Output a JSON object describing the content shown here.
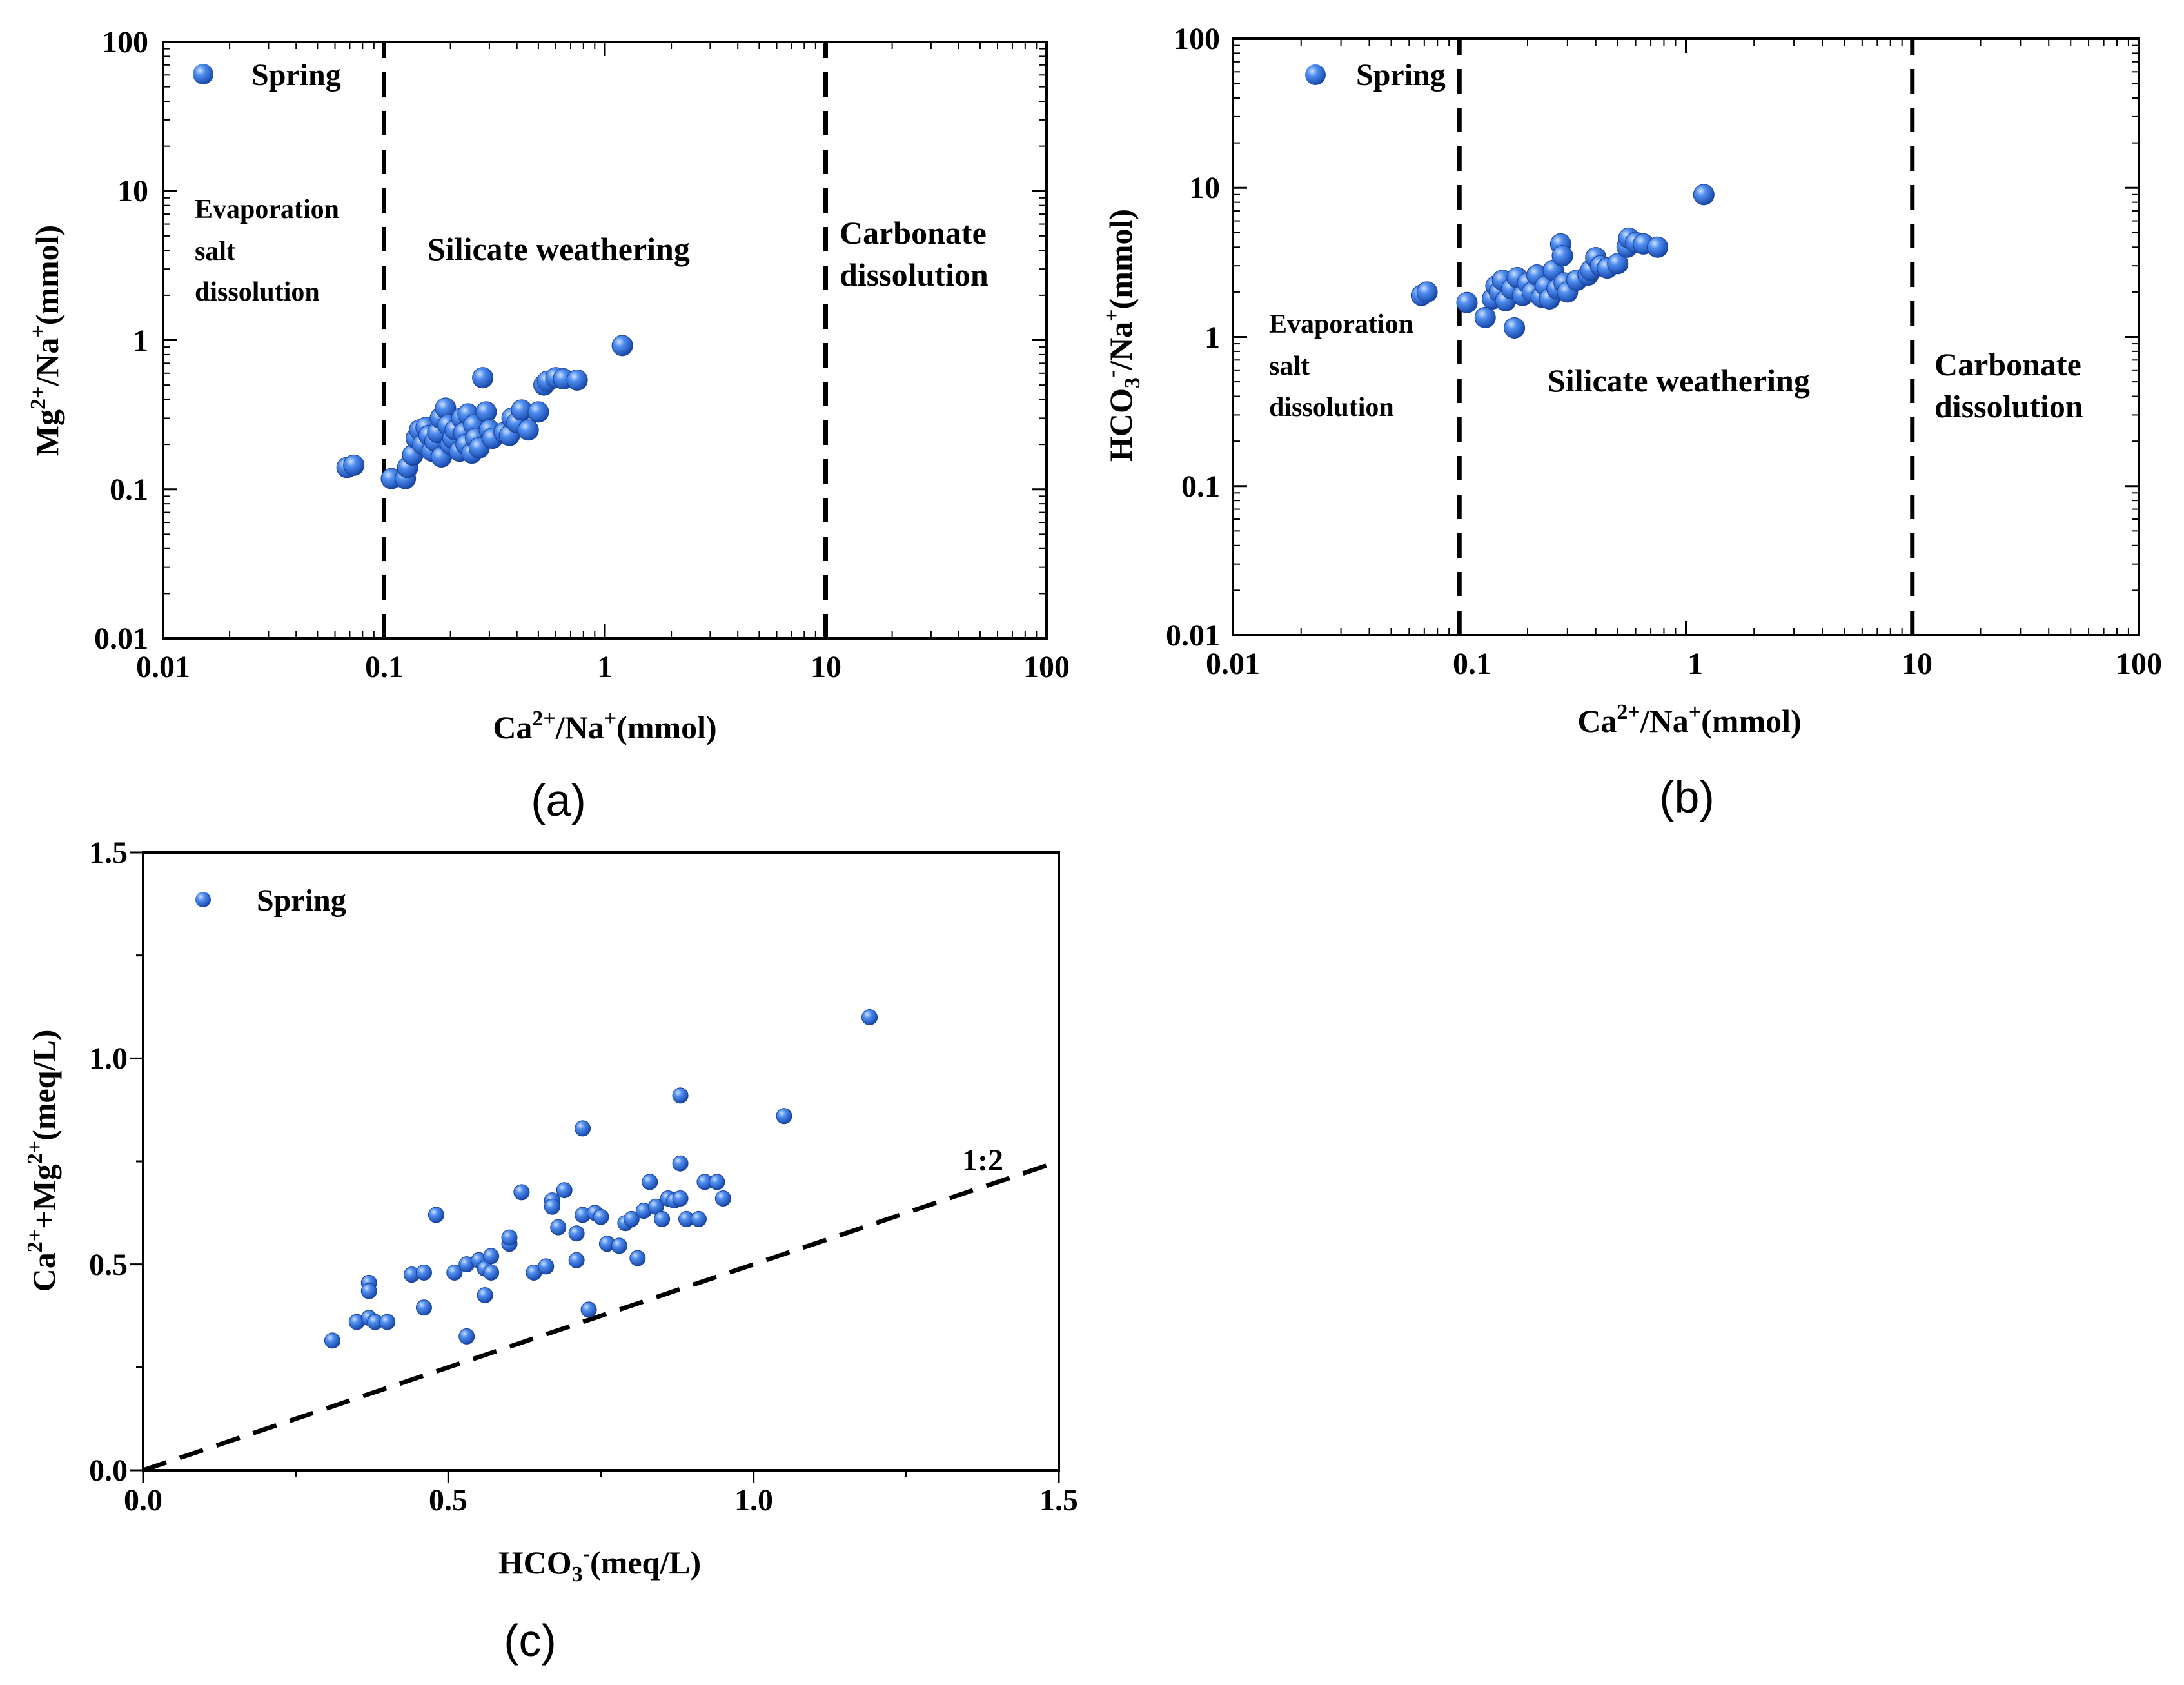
{
  "charts": {
    "a": {
      "panel_label": "(a)",
      "legend": "Spring",
      "xlabel": {
        "base": "Ca",
        "sup1": "2+",
        "mid": "/Na",
        "sup2": "+",
        "tail": "(mmol)"
      },
      "ylabel": {
        "base": "Mg",
        "sup1": "2+",
        "mid": "/Na",
        "sup2": "+",
        "tail": "(mmol)"
      },
      "xticks": [
        "0.01",
        "0.1",
        "1",
        "10",
        "100"
      ],
      "yticks": [
        "0.01",
        "0.1",
        "1",
        "10",
        "100"
      ],
      "regions": {
        "evap": [
          "Evaporation",
          "salt",
          "dissolution"
        ],
        "silicate": "Silicate weathering",
        "carbonate": [
          "Carbonate",
          "dissolution"
        ]
      }
    },
    "b": {
      "panel_label": "(b)",
      "legend": "Spring",
      "xlabel": {
        "base": "Ca",
        "sup1": "2+",
        "mid": "/Na",
        "sup2": "+",
        "tail": "(mmol)"
      },
      "ylabel": {
        "base": "HCO",
        "sub": "3",
        "sup1": "-",
        "mid": "/Na",
        "sup2": "+",
        "tail": "(mmol)"
      },
      "xticks": [
        "0.01",
        "0.1",
        "1",
        "10",
        "100"
      ],
      "yticks": [
        "0.01",
        "0.1",
        "1",
        "10",
        "100"
      ],
      "regions": {
        "evap": [
          "Evaporation",
          "salt",
          "dissolution"
        ],
        "silicate": "Silicate weathering",
        "carbonate": [
          "Carbonate",
          "dissolution"
        ]
      }
    },
    "c": {
      "panel_label": "(c)",
      "legend": "Spring",
      "xlabel": {
        "base": "HCO",
        "sub": "3",
        "sup1": "-",
        "tail": "(meq/L)"
      },
      "ylabel": {
        "base": "Ca",
        "sup1": "2+",
        "mid": "+Mg",
        "sup2": "2+",
        "tail": "(meq/L)"
      },
      "xticks": [
        "0.0",
        "0.5",
        "1.0",
        "1.5"
      ],
      "yticks": [
        "0.0",
        "0.5",
        "1.0",
        "1.5"
      ],
      "line_label": "1:2"
    }
  },
  "chart_data": [
    {
      "id": "a",
      "type": "scatter",
      "title": "",
      "x_scale": "log",
      "y_scale": "log",
      "xlim": [
        0.01,
        100
      ],
      "ylim": [
        0.01,
        100
      ],
      "xlabel": "Ca2+/Na+(mmol)",
      "ylabel": "Mg2+/Na+(mmol)",
      "legend": "top-left",
      "reference_lines": [
        {
          "orientation": "vertical",
          "x": 0.1
        },
        {
          "orientation": "vertical",
          "x": 10
        }
      ],
      "series": [
        {
          "name": "Spring",
          "color": "#2f6fd6",
          "points": [
            [
              0.068,
              0.14
            ],
            [
              0.073,
              0.145
            ],
            [
              0.108,
              0.118
            ],
            [
              0.125,
              0.118
            ],
            [
              0.128,
              0.14
            ],
            [
              0.135,
              0.17
            ],
            [
              0.14,
              0.22
            ],
            [
              0.145,
              0.25
            ],
            [
              0.15,
              0.2
            ],
            [
              0.155,
              0.26
            ],
            [
              0.16,
              0.23
            ],
            [
              0.165,
              0.18
            ],
            [
              0.17,
              0.21
            ],
            [
              0.175,
              0.24
            ],
            [
              0.18,
              0.3
            ],
            [
              0.182,
              0.165
            ],
            [
              0.19,
              0.35
            ],
            [
              0.195,
              0.27
            ],
            [
              0.2,
              0.2
            ],
            [
              0.205,
              0.22
            ],
            [
              0.21,
              0.25
            ],
            [
              0.22,
              0.18
            ],
            [
              0.225,
              0.3
            ],
            [
              0.23,
              0.24
            ],
            [
              0.235,
              0.2
            ],
            [
              0.24,
              0.32
            ],
            [
              0.25,
              0.175
            ],
            [
              0.255,
              0.27
            ],
            [
              0.26,
              0.22
            ],
            [
              0.27,
              0.19
            ],
            [
              0.28,
              0.56
            ],
            [
              0.29,
              0.33
            ],
            [
              0.3,
              0.25
            ],
            [
              0.31,
              0.22
            ],
            [
              0.35,
              0.24
            ],
            [
              0.37,
              0.23
            ],
            [
              0.38,
              0.3
            ],
            [
              0.4,
              0.28
            ],
            [
              0.42,
              0.34
            ],
            [
              0.45,
              0.25
            ],
            [
              0.5,
              0.33
            ],
            [
              0.53,
              0.5
            ],
            [
              0.55,
              0.53
            ],
            [
              0.6,
              0.56
            ],
            [
              0.65,
              0.55
            ],
            [
              0.75,
              0.54
            ],
            [
              1.2,
              0.92
            ]
          ]
        }
      ]
    },
    {
      "id": "b",
      "type": "scatter",
      "title": "",
      "x_scale": "log",
      "y_scale": "log",
      "xlim": [
        0.01,
        100
      ],
      "ylim": [
        0.01,
        100
      ],
      "xlabel": "Ca2+/Na+(mmol)",
      "ylabel": "HCO3-/Na+(mmol)",
      "legend": "top-left",
      "reference_lines": [
        {
          "orientation": "vertical",
          "x": 0.1
        },
        {
          "orientation": "vertical",
          "x": 10
        }
      ],
      "series": [
        {
          "name": "Spring",
          "color": "#2f6fd6",
          "points": [
            [
              0.068,
              1.9
            ],
            [
              0.072,
              2.0
            ],
            [
              0.108,
              1.7
            ],
            [
              0.13,
              1.35
            ],
            [
              0.14,
              1.8
            ],
            [
              0.145,
              2.2
            ],
            [
              0.15,
              2.0
            ],
            [
              0.155,
              2.4
            ],
            [
              0.16,
              1.75
            ],
            [
              0.17,
              2.1
            ],
            [
              0.175,
              1.15
            ],
            [
              0.18,
              2.5
            ],
            [
              0.19,
              1.9
            ],
            [
              0.2,
              2.3
            ],
            [
              0.21,
              2.0
            ],
            [
              0.22,
              2.6
            ],
            [
              0.23,
              1.85
            ],
            [
              0.24,
              2.2
            ],
            [
              0.25,
              1.8
            ],
            [
              0.26,
              2.8
            ],
            [
              0.27,
              2.1
            ],
            [
              0.28,
              4.2
            ],
            [
              0.285,
              3.5
            ],
            [
              0.29,
              2.3
            ],
            [
              0.3,
              2.0
            ],
            [
              0.33,
              2.4
            ],
            [
              0.37,
              2.6
            ],
            [
              0.38,
              2.8
            ],
            [
              0.4,
              3.4
            ],
            [
              0.42,
              3.0
            ],
            [
              0.45,
              2.9
            ],
            [
              0.5,
              3.1
            ],
            [
              0.55,
              4.0
            ],
            [
              0.56,
              4.6
            ],
            [
              0.6,
              4.3
            ],
            [
              0.65,
              4.2
            ],
            [
              0.75,
              4.0
            ],
            [
              1.2,
              9.0
            ]
          ]
        }
      ]
    },
    {
      "id": "c",
      "type": "scatter",
      "title": "",
      "xlim": [
        0,
        1.5
      ],
      "ylim": [
        0,
        1.5
      ],
      "xlabel": "HCO3-(meq/L)",
      "ylabel": "Ca2++Mg2+(meq/L)",
      "legend": "top-left",
      "reference_lines": [
        {
          "label": "1:2",
          "from": [
            0,
            0
          ],
          "to": [
            1.5,
            0.75
          ]
        }
      ],
      "series": [
        {
          "name": "Spring",
          "color": "#2f6fd6",
          "points": [
            [
              0.31,
              0.315
            ],
            [
              0.35,
              0.36
            ],
            [
              0.37,
              0.37
            ],
            [
              0.37,
              0.455
            ],
            [
              0.37,
              0.435
            ],
            [
              0.38,
              0.36
            ],
            [
              0.4,
              0.36
            ],
            [
              0.44,
              0.475
            ],
            [
              0.46,
              0.48
            ],
            [
              0.46,
              0.395
            ],
            [
              0.48,
              0.62
            ],
            [
              0.51,
              0.48
            ],
            [
              0.53,
              0.5
            ],
            [
              0.53,
              0.325
            ],
            [
              0.55,
              0.51
            ],
            [
              0.56,
              0.425
            ],
            [
              0.56,
              0.49
            ],
            [
              0.57,
              0.48
            ],
            [
              0.57,
              0.52
            ],
            [
              0.6,
              0.55
            ],
            [
              0.6,
              0.565
            ],
            [
              0.62,
              0.675
            ],
            [
              0.64,
              0.48
            ],
            [
              0.66,
              0.495
            ],
            [
              0.67,
              0.655
            ],
            [
              0.67,
              0.64
            ],
            [
              0.68,
              0.59
            ],
            [
              0.69,
              0.68
            ],
            [
              0.71,
              0.575
            ],
            [
              0.71,
              0.51
            ],
            [
              0.72,
              0.83
            ],
            [
              0.72,
              0.62
            ],
            [
              0.73,
              0.39
            ],
            [
              0.74,
              0.625
            ],
            [
              0.75,
              0.615
            ],
            [
              0.76,
              0.55
            ],
            [
              0.78,
              0.545
            ],
            [
              0.79,
              0.6
            ],
            [
              0.8,
              0.61
            ],
            [
              0.81,
              0.515
            ],
            [
              0.82,
              0.63
            ],
            [
              0.83,
              0.7
            ],
            [
              0.84,
              0.64
            ],
            [
              0.85,
              0.61
            ],
            [
              0.86,
              0.66
            ],
            [
              0.87,
              0.655
            ],
            [
              0.88,
              0.66
            ],
            [
              0.88,
              0.745
            ],
            [
              0.88,
              0.91
            ],
            [
              0.89,
              0.61
            ],
            [
              0.91,
              0.61
            ],
            [
              0.92,
              0.7
            ],
            [
              0.94,
              0.7
            ],
            [
              0.95,
              0.66
            ],
            [
              1.05,
              0.86
            ],
            [
              1.19,
              1.1
            ]
          ]
        }
      ]
    }
  ]
}
